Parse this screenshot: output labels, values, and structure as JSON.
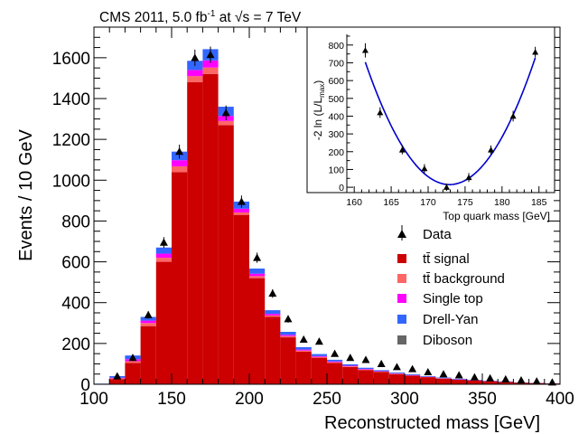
{
  "header": {
    "prefix": "CMS 2011, 5.0 fb",
    "lumi_sup": "-1",
    "mid": " at ",
    "sqrt": "√s",
    "energy": " = 7 TeV"
  },
  "chart_data": [
    {
      "type": "bar",
      "subtype": "stacked-histogram",
      "xlabel": "Reconstructed mass [GeV]",
      "ylabel": "Events / 10 GeV",
      "xlim": [
        100,
        400
      ],
      "ylim": [
        0,
        1750
      ],
      "x_ticks": [
        100,
        150,
        200,
        250,
        300,
        350,
        400
      ],
      "y_ticks": [
        0,
        200,
        400,
        600,
        800,
        1000,
        1200,
        1400,
        1600
      ],
      "bin_edges": [
        100,
        110,
        120,
        130,
        140,
        150,
        160,
        170,
        180,
        190,
        200,
        210,
        220,
        230,
        240,
        250,
        260,
        270,
        280,
        290,
        300,
        310,
        320,
        330,
        340,
        350,
        360,
        370,
        380,
        390,
        400
      ],
      "series": [
        {
          "name": "tt̄ signal",
          "color": "#cc0000",
          "values": [
            2,
            25,
            105,
            285,
            600,
            1040,
            1480,
            1520,
            1270,
            830,
            520,
            330,
            230,
            160,
            130,
            105,
            85,
            70,
            60,
            50,
            42,
            35,
            28,
            22,
            18,
            14,
            11,
            8,
            6,
            4
          ]
        },
        {
          "name": "tt̄ background",
          "color": "#ff6666",
          "values": [
            0,
            4,
            8,
            15,
            20,
            28,
            30,
            32,
            20,
            12,
            10,
            7,
            6,
            5,
            4,
            3,
            3,
            2,
            2,
            2,
            1,
            1,
            1,
            1,
            1,
            1,
            0,
            0,
            0,
            0
          ]
        },
        {
          "name": "Single top",
          "color": "#ff00ff",
          "values": [
            0,
            3,
            10,
            12,
            20,
            30,
            30,
            35,
            25,
            18,
            12,
            8,
            6,
            5,
            4,
            4,
            3,
            3,
            2,
            2,
            2,
            1,
            1,
            1,
            1,
            1,
            1,
            0,
            0,
            0
          ]
        },
        {
          "name": "Drell-Yan",
          "color": "#3366ff",
          "values": [
            1,
            8,
            18,
            18,
            30,
            42,
            45,
            55,
            45,
            35,
            25,
            18,
            15,
            12,
            10,
            8,
            7,
            6,
            5,
            4,
            4,
            3,
            3,
            3,
            2,
            2,
            2,
            1,
            1,
            1
          ]
        },
        {
          "name": "Diboson",
          "color": "#666666",
          "values": [
            0,
            0,
            0,
            0,
            0,
            0,
            0,
            0,
            0,
            0,
            0,
            0,
            0,
            0,
            0,
            0,
            0,
            0,
            0,
            0,
            0,
            0,
            0,
            0,
            0,
            0,
            0,
            0,
            0,
            0
          ]
        }
      ],
      "data_points": {
        "name": "Data",
        "x": [
          115,
          125,
          135,
          145,
          155,
          165,
          175,
          185,
          195,
          205,
          215,
          225,
          235,
          245,
          255,
          265,
          275,
          285,
          295,
          305,
          315,
          325,
          335,
          345,
          355,
          365,
          375,
          385,
          395
        ],
        "y": [
          40,
          130,
          340,
          695,
          1140,
          1600,
          1615,
          1330,
          895,
          620,
          445,
          320,
          220,
          210,
          150,
          130,
          120,
          100,
          85,
          75,
          60,
          50,
          45,
          35,
          30,
          25,
          20,
          15,
          10
        ],
        "err": [
          6,
          11,
          18,
          26,
          34,
          40,
          40,
          36,
          30,
          25,
          21,
          18,
          15,
          14,
          12,
          11,
          11,
          10,
          9,
          9,
          8,
          7,
          7,
          6,
          5,
          5,
          4,
          4,
          3
        ]
      },
      "legend": {
        "placement": "right",
        "entries": [
          "Data",
          "tt̄ signal",
          "tt̄ background",
          "Single top",
          "Drell-Yan",
          "Diboson"
        ]
      }
    },
    {
      "type": "scatter",
      "subtype": "inset-likelihood-scan",
      "xlabel": "Top quark mass [GeV]",
      "ylabel_main": "-2 ln (L/L",
      "ylabel_sub": "max",
      "ylabel_end": ")",
      "xlim": [
        159,
        186.5
      ],
      "ylim": [
        -30,
        860
      ],
      "x_ticks": [
        160,
        165,
        170,
        175,
        180,
        185
      ],
      "y_ticks": [
        0,
        100,
        200,
        300,
        400,
        500,
        600,
        700,
        800
      ],
      "points": {
        "x": [
          161.5,
          163.5,
          166.5,
          169.5,
          172.5,
          175.5,
          178.5,
          181.5,
          184.5
        ],
        "y": [
          770,
          420,
          210,
          105,
          0,
          55,
          210,
          400,
          760
        ],
        "err": [
          40,
          30,
          25,
          25,
          20,
          25,
          25,
          30,
          30
        ]
      },
      "fit": {
        "type": "parabola",
        "color": "#0000cc",
        "min_x": 172.9,
        "min_y": 15,
        "curvature": 5.3,
        "x_range": [
          161.5,
          184.5
        ]
      }
    }
  ],
  "legend": {
    "data": "Data",
    "signal_a": "t",
    "signal_b": "t̄",
    "signal_c": " signal",
    "bkg_a": "t",
    "bkg_b": "t̄",
    "bkg_c": " background",
    "single_top": "Single top",
    "drell_yan": "Drell-Yan",
    "diboson": "Diboson",
    "colors": {
      "signal": "#cc0000",
      "background": "#ff6666",
      "single_top": "#ff00ff",
      "drell_yan": "#3366ff",
      "diboson": "#666666"
    }
  }
}
